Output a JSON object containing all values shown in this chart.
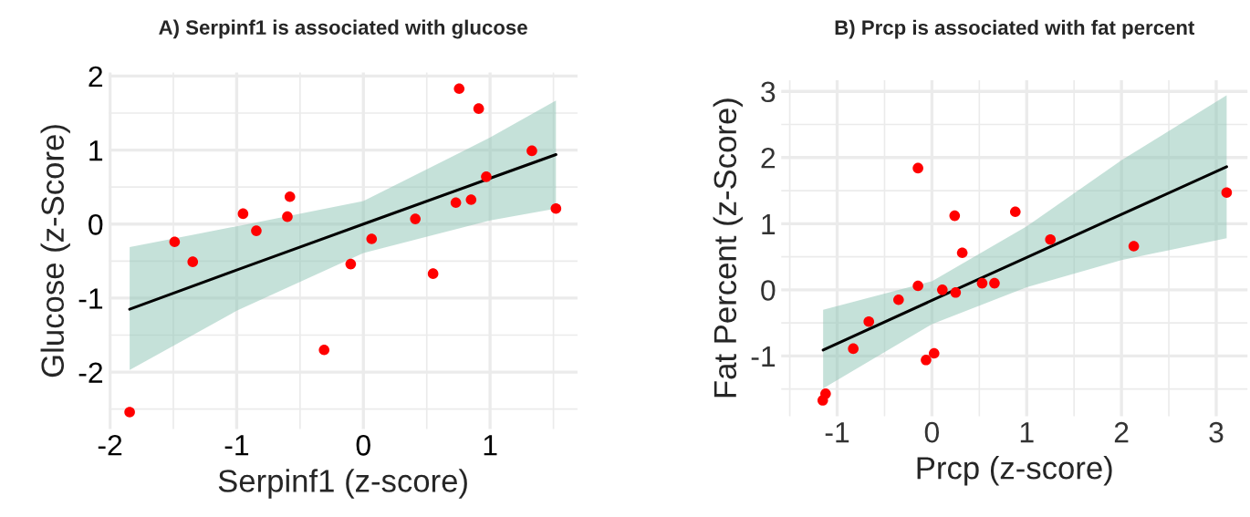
{
  "chart_data": [
    {
      "type": "scatter",
      "title": "A) Serpinf1 is associated with glucose",
      "xlabel": "Serpinf1 (z-score)",
      "ylabel": "Glucose (z-Score)",
      "xlim": [
        -2.01,
        1.69
      ],
      "ylim": [
        -2.77,
        2.05
      ],
      "xticks": [
        -2,
        -1,
        0,
        1
      ],
      "yticks": [
        -2,
        -1,
        0,
        1,
        2
      ],
      "grid": true,
      "legend": false,
      "series": [
        {
          "marker": "circle",
          "color": "#ff0000",
          "x": [
            -1.845,
            -1.49,
            -1.347,
            -0.95,
            -0.845,
            -0.58,
            -0.6,
            -0.31,
            -0.1,
            0.065,
            0.41,
            0.55,
            0.73,
            0.85,
            0.756,
            0.91,
            0.97,
            1.33,
            1.52
          ],
          "values": [
            -2.54,
            -0.24,
            -0.51,
            0.14,
            -0.09,
            0.37,
            0.1,
            -1.7,
            -0.54,
            -0.2,
            0.07,
            -0.67,
            0.29,
            0.33,
            1.83,
            1.56,
            0.64,
            0.99,
            0.21
          ]
        },
        {
          "type": "line",
          "marker": "none",
          "color": "#000000",
          "x": [
            -1.845,
            -1,
            0,
            1,
            1.52
          ],
          "values": [
            -1.15,
            -0.62,
            0.0,
            0.62,
            0.94
          ],
          "lower": [
            -1.97,
            -1.17,
            -0.39,
            0.05,
            0.21
          ],
          "upper": [
            -0.31,
            -0.03,
            0.31,
            1.17,
            1.67
          ]
        }
      ]
    },
    {
      "type": "scatter",
      "title": "B) Prcp is associated with fat percent",
      "xlabel": "Prcp (z-score)",
      "ylabel": "Fat Percent (z-Score)",
      "xlim": [
        -1.59,
        3.33
      ],
      "ylim": [
        -1.91,
        3.17
      ],
      "xticks": [
        -1,
        0,
        1,
        2,
        3
      ],
      "yticks": [
        -1,
        0,
        1,
        2,
        3
      ],
      "grid": true,
      "legend": false,
      "series": [
        {
          "marker": "circle",
          "color": "#ff0000",
          "x": [
            -1.152,
            -1.122,
            -0.83,
            -0.666,
            -0.352,
            -0.147,
            -0.147,
            -0.062,
            0.023,
            0.11,
            0.24,
            0.25,
            0.32,
            0.53,
            0.66,
            0.88,
            1.25,
            2.13,
            3.11
          ],
          "values": [
            -1.67,
            -1.57,
            -0.89,
            -0.48,
            -0.15,
            1.84,
            0.06,
            -1.06,
            -0.96,
            0.0,
            1.12,
            -0.04,
            0.56,
            0.1,
            0.1,
            1.18,
            0.76,
            0.66,
            1.47
          ]
        },
        {
          "type": "line",
          "marker": "none",
          "color": "#000000",
          "x": [
            -1.148,
            0,
            1,
            2,
            3.11
          ],
          "values": [
            -0.91,
            -0.16,
            0.49,
            1.14,
            1.86
          ],
          "lower": [
            -1.49,
            -0.52,
            0.04,
            0.45,
            0.78
          ],
          "upper": [
            -0.3,
            0.13,
            0.96,
            1.96,
            2.94
          ]
        }
      ]
    }
  ]
}
